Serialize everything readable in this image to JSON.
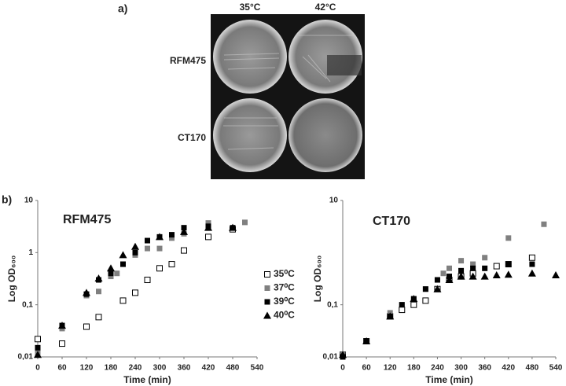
{
  "figure": {
    "panel_a": {
      "label": "a)",
      "columns": [
        "35°C",
        "42°C"
      ],
      "rows": [
        "RFM475",
        "CT170"
      ]
    },
    "panel_b_label": "b)"
  },
  "chart_data": [
    {
      "type": "scatter",
      "title": "RFM475",
      "xlabel": "Time (min)",
      "ylabel": "Log OD₆₀₀",
      "log_y": true,
      "grid": false,
      "legend": "right",
      "xlim": [
        0,
        540
      ],
      "xticks": [
        0,
        60,
        120,
        180,
        240,
        300,
        360,
        420,
        480,
        540
      ],
      "ylim": [
        0.01,
        10
      ],
      "yticks": [
        {
          "value": 0.01,
          "label": "0,01"
        },
        {
          "value": 0.1,
          "label": "0,1"
        },
        1,
        10
      ],
      "series": [
        {
          "name": "35⁰C",
          "marker": "open-square",
          "color": "#000000",
          "x": [
            0,
            60,
            120,
            150,
            210,
            240,
            270,
            300,
            330,
            360,
            420,
            480
          ],
          "values": [
            0.022,
            0.018,
            0.038,
            0.058,
            0.12,
            0.17,
            0.3,
            0.5,
            0.6,
            1.1,
            2,
            2.8
          ]
        },
        {
          "name": "37⁰C",
          "marker": "square",
          "color": "#808080",
          "x": [
            0,
            60,
            120,
            150,
            180,
            195,
            210,
            240,
            270,
            300,
            330,
            360,
            420,
            510
          ],
          "values": [
            0.012,
            0.035,
            0.15,
            0.18,
            0.35,
            0.4,
            0.6,
            0.9,
            1.2,
            1.2,
            1.9,
            2.3,
            3.7,
            3.8
          ]
        },
        {
          "name": "39⁰C",
          "marker": "square",
          "color": "#000000",
          "x": [
            0,
            60,
            120,
            150,
            180,
            210,
            240,
            270,
            300,
            330,
            360,
            420,
            480
          ],
          "values": [
            0.015,
            0.04,
            0.16,
            0.3,
            0.4,
            0.6,
            1.0,
            1.7,
            2,
            2.2,
            3,
            3.2,
            3
          ]
        },
        {
          "name": "40⁰C",
          "marker": "triangle",
          "color": "#000000",
          "x": [
            0,
            60,
            120,
            150,
            180,
            210,
            240,
            300,
            360,
            420,
            480
          ],
          "values": [
            0.011,
            0.04,
            0.17,
            0.32,
            0.5,
            0.9,
            1.3,
            2,
            2.5,
            3,
            3
          ]
        }
      ]
    },
    {
      "type": "scatter",
      "title": "CT170",
      "xlabel": "Time (min)",
      "ylabel": "Log OD₆₀₀",
      "log_y": true,
      "grid": false,
      "xlim": [
        0,
        540
      ],
      "xticks": [
        0,
        60,
        120,
        180,
        240,
        300,
        360,
        420,
        480,
        540
      ],
      "ylim": [
        0.01,
        10
      ],
      "yticks": [
        {
          "value": 0.01,
          "label": "0,01"
        },
        {
          "value": 0.1,
          "label": "0,1"
        },
        10
      ],
      "series": [
        {
          "marker": "open-square",
          "color": "#000000",
          "x": [
            0,
            60,
            120,
            150,
            180,
            210,
            240,
            270,
            300,
            330,
            390,
            420,
            480
          ],
          "values": [
            0.011,
            0.02,
            0.06,
            0.08,
            0.1,
            0.12,
            0.2,
            0.3,
            0.35,
            0.4,
            0.55,
            0.6,
            0.8
          ]
        },
        {
          "marker": "square",
          "color": "#808080",
          "x": [
            0,
            60,
            120,
            150,
            180,
            210,
            240,
            255,
            270,
            300,
            330,
            360,
            420,
            510
          ],
          "values": [
            0.011,
            0.02,
            0.07,
            0.1,
            0.13,
            0.2,
            0.3,
            0.4,
            0.5,
            0.7,
            0.6,
            0.8,
            1.9,
            3.5
          ]
        },
        {
          "marker": "square",
          "color": "#000000",
          "x": [
            0,
            60,
            120,
            150,
            180,
            210,
            240,
            270,
            300,
            330,
            360,
            420,
            480
          ],
          "values": [
            0.01,
            0.02,
            0.06,
            0.1,
            0.13,
            0.2,
            0.3,
            0.35,
            0.45,
            0.5,
            0.5,
            0.6,
            0.6
          ]
        },
        {
          "marker": "triangle",
          "color": "#000000",
          "x": [
            0,
            60,
            120,
            180,
            240,
            270,
            300,
            330,
            360,
            390,
            420,
            480,
            540
          ],
          "values": [
            0.011,
            0.02,
            0.06,
            0.13,
            0.2,
            0.3,
            0.35,
            0.35,
            0.35,
            0.37,
            0.38,
            0.4,
            0.37
          ]
        }
      ]
    }
  ]
}
